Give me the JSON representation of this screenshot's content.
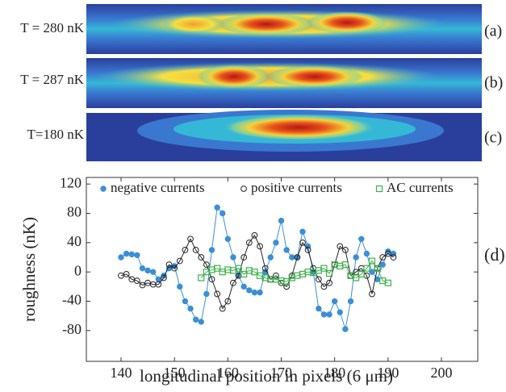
{
  "panels": [
    {
      "label": "T = 280 nK",
      "tag": "(a)"
    },
    {
      "label": "T = 287 nK",
      "tag": "(b)"
    },
    {
      "label": "T=180 nK",
      "tag": "(c)"
    }
  ],
  "chart_data": {
    "type": "line",
    "annotation": "(d)",
    "xlabel": "longitudinal position in pixels (6 μm)",
    "ylabel": "roughness (nK)",
    "xlim": [
      133.5,
      206.8
    ],
    "ylim": [
      -122,
      129
    ],
    "xticks": [
      140,
      150,
      160,
      170,
      180,
      190,
      200
    ],
    "yticks": [
      120,
      80,
      40,
      0,
      -40,
      -80
    ],
    "series": [
      {
        "name": "negative currents",
        "color": "#3a8fd6",
        "marker": "filled-circle",
        "x": [
          140,
          141,
          142,
          143,
          144,
          145,
          146,
          147,
          148,
          149,
          150,
          151,
          152,
          153,
          154,
          155,
          156,
          157,
          158,
          159,
          160,
          161,
          162,
          163,
          164,
          165,
          166,
          167,
          168,
          169,
          170,
          171,
          172,
          173,
          174,
          175,
          176,
          177,
          178,
          179,
          180,
          181,
          182,
          183,
          184,
          185,
          186,
          187,
          188,
          189,
          190,
          191
        ],
        "values": [
          20,
          25,
          24,
          23,
          5,
          2,
          0,
          -10,
          -5,
          5,
          8,
          -20,
          -40,
          -50,
          -65,
          -68,
          -30,
          30,
          88,
          80,
          45,
          20,
          -5,
          -20,
          -25,
          -28,
          -28,
          0,
          20,
          40,
          70,
          30,
          20,
          20,
          55,
          35,
          0,
          -50,
          -58,
          -58,
          -40,
          -55,
          -78,
          -40,
          20,
          45,
          25,
          0,
          -10,
          10,
          28,
          25
        ]
      },
      {
        "name": "positive currents",
        "color": "#222222",
        "marker": "open-circle",
        "x": [
          140,
          141,
          142,
          143,
          144,
          145,
          146,
          147,
          148,
          149,
          150,
          151,
          152,
          153,
          154,
          155,
          156,
          157,
          158,
          159,
          160,
          161,
          162,
          163,
          164,
          165,
          166,
          167,
          168,
          169,
          170,
          171,
          172,
          173,
          174,
          175,
          176,
          177,
          178,
          179,
          180,
          181,
          182,
          183,
          184,
          185,
          186,
          187,
          188,
          189,
          190,
          191
        ],
        "values": [
          -5,
          -3,
          -10,
          -12,
          -18,
          -15,
          -17,
          -17,
          -8,
          10,
          5,
          15,
          30,
          45,
          30,
          20,
          10,
          -10,
          -30,
          -50,
          -40,
          -15,
          -5,
          20,
          40,
          50,
          35,
          5,
          -10,
          -5,
          -15,
          -20,
          -5,
          20,
          40,
          30,
          5,
          -10,
          -20,
          -15,
          10,
          35,
          30,
          -5,
          0,
          5,
          -5,
          -30,
          5,
          20,
          25,
          20
        ]
      },
      {
        "name": "AC currents",
        "color": "#3cb04a",
        "marker": "open-square",
        "x": [
          155,
          156,
          157,
          158,
          159,
          160,
          161,
          162,
          163,
          164,
          165,
          166,
          167,
          168,
          169,
          170,
          171,
          172,
          173,
          174,
          175,
          176,
          177,
          178,
          179,
          180,
          181,
          182,
          183,
          184,
          185,
          186,
          187,
          188,
          189,
          190
        ],
        "values": [
          -8,
          0,
          3,
          5,
          0,
          3,
          2,
          5,
          -3,
          2,
          0,
          -5,
          -8,
          -10,
          -10,
          -12,
          -13,
          -8,
          -5,
          -3,
          0,
          -1,
          2,
          5,
          -2,
          10,
          8,
          10,
          -5,
          -8,
          -3,
          5,
          15,
          5,
          -12,
          -15
        ]
      }
    ]
  }
}
